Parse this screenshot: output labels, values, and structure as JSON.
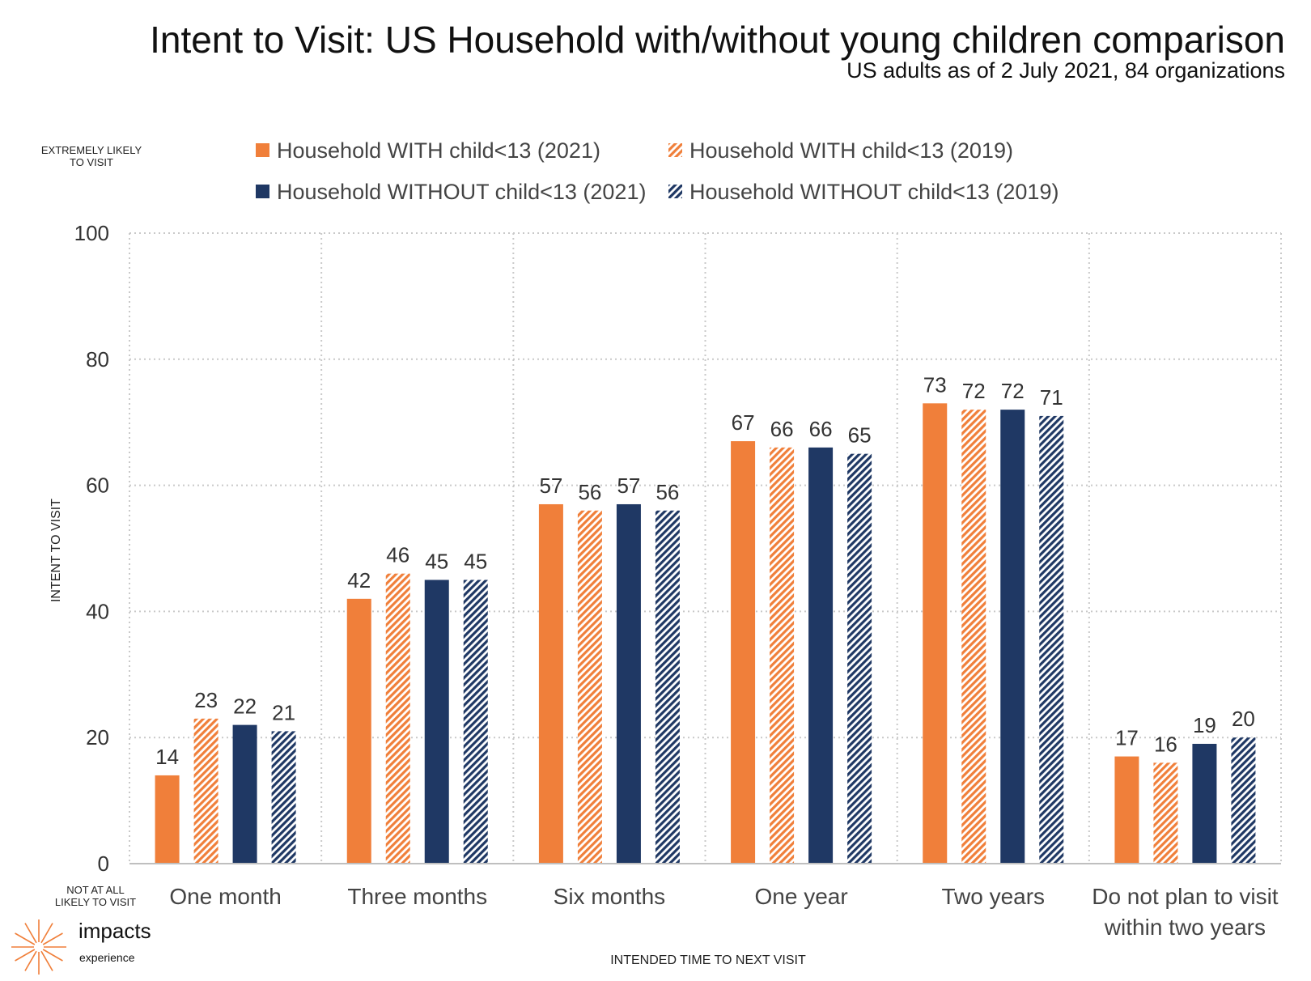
{
  "header": {
    "title": "Intent to Visit: US Household with/without young children comparison",
    "subtitle": "US adults as of 2 July 2021, 84 organizations"
  },
  "side_labels": {
    "top": "EXTREMELY LIKELY\nTO VISIT",
    "bottom": "NOT AT ALL\nLIKELY TO VISIT"
  },
  "logo": {
    "name": "impacts",
    "sub": "experience",
    "icon": "sunburst-icon"
  },
  "colors": {
    "orange": "#F07F3A",
    "navy": "#1F3864",
    "grid": "#C9C9C9",
    "axis": "#BFBFBF"
  },
  "chart_data": {
    "type": "bar",
    "title": "Intent to Visit: US Household with/without young children comparison",
    "subtitle": "US adults as of 2 July 2021, 84 organizations",
    "ylabel": "INTENT TO VISIT",
    "xlabel": "INTENDED TIME TO NEXT VISIT",
    "ylim": [
      0,
      100
    ],
    "yticks": [
      0,
      20,
      40,
      60,
      80,
      100
    ],
    "grid": true,
    "legend_position": "top",
    "categories": [
      "One month",
      "Three months",
      "Six months",
      "One year",
      "Two years",
      "Do not plan to visit within two years"
    ],
    "series": [
      {
        "name": "Household WITH child<13 (2021)",
        "color": "#F07F3A",
        "pattern": "solid",
        "values": [
          14,
          42,
          57,
          67,
          73,
          17
        ]
      },
      {
        "name": "Household WITH child<13 (2019)",
        "color": "#F07F3A",
        "pattern": "hatched",
        "values": [
          23,
          46,
          56,
          66,
          72,
          16
        ]
      },
      {
        "name": "Household WITHOUT child<13 (2021)",
        "color": "#1F3864",
        "pattern": "solid",
        "values": [
          22,
          45,
          57,
          66,
          72,
          19
        ]
      },
      {
        "name": "Household WITHOUT child<13 (2019)",
        "color": "#1F3864",
        "pattern": "hatched",
        "values": [
          21,
          45,
          56,
          65,
          71,
          20
        ]
      }
    ]
  }
}
